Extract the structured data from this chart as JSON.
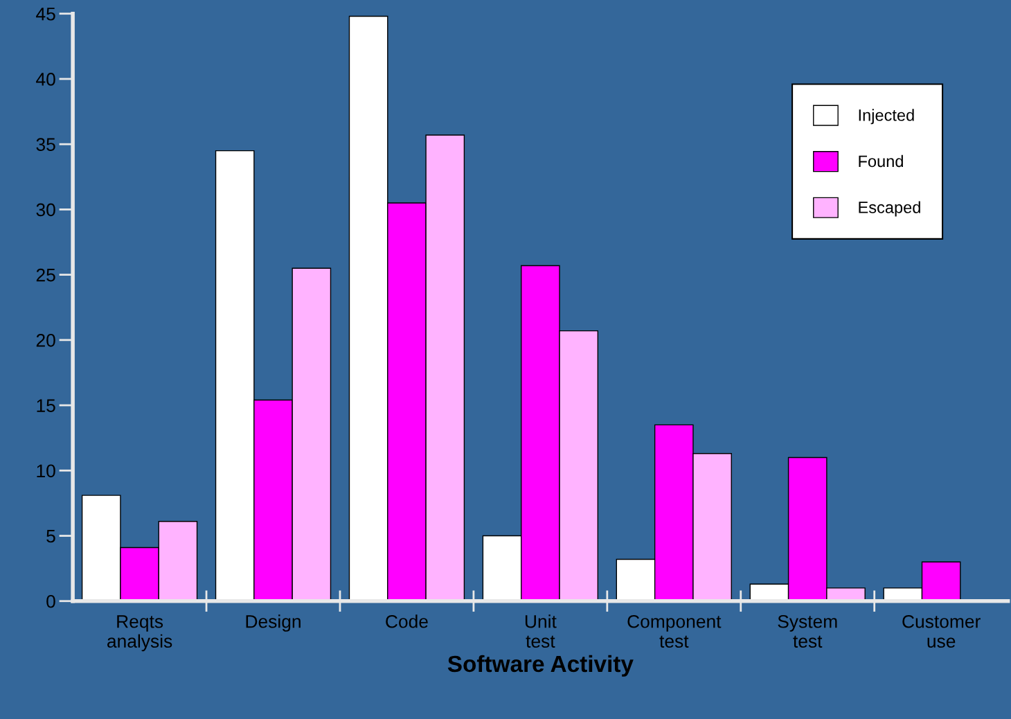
{
  "chart_data": {
    "type": "bar",
    "xlabel": "Software Activity",
    "categories": [
      "Reqts\nanalysis",
      "Design",
      "Code",
      "Unit\ntest",
      "Component\ntest",
      "System\ntest",
      "Customer\nuse"
    ],
    "series": [
      {
        "name": "Injected",
        "color": "#ffffff",
        "values": [
          8.1,
          34.5,
          44.8,
          5,
          3.2,
          1.3,
          1
        ]
      },
      {
        "name": "Found",
        "color": "#ff00ff",
        "values": [
          4.1,
          15.4,
          30.5,
          25.7,
          13.5,
          11,
          3
        ]
      },
      {
        "name": "Escaped",
        "color": "#ffb3ff",
        "values": [
          6.1,
          25.5,
          35.7,
          20.7,
          11.3,
          1,
          null
        ]
      }
    ],
    "ylim": [
      0,
      45
    ],
    "yticks": [
      0,
      5,
      10,
      15,
      20,
      25,
      30,
      35,
      40,
      45
    ],
    "grid": false,
    "legend": "top right"
  }
}
